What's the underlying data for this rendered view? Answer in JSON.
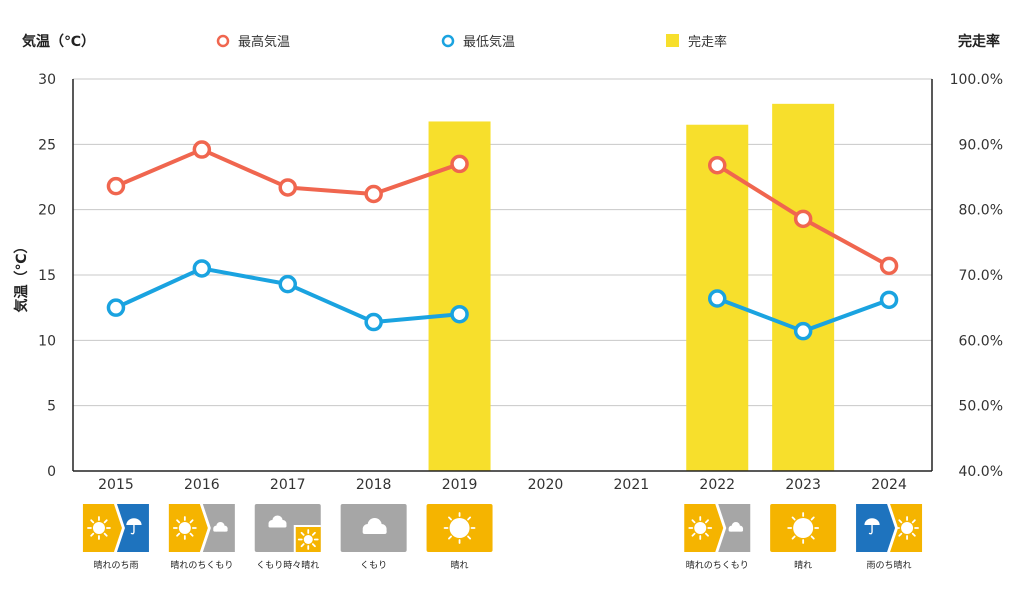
{
  "chart_data": {
    "type": "bar+line",
    "categories": [
      "2015",
      "2016",
      "2017",
      "2018",
      "2019",
      "2020",
      "2021",
      "2022",
      "2023",
      "2024"
    ],
    "left_axis": {
      "title": "気温（℃）",
      "ylabel": "気温（℃）",
      "ylim": [
        0,
        30
      ],
      "ticks": [
        "0",
        "5",
        "10",
        "15",
        "20",
        "25",
        "30"
      ]
    },
    "right_axis": {
      "title": "完走率",
      "ylim": [
        40,
        100
      ],
      "ticks": [
        "40.0%",
        "50.0%",
        "60.0%",
        "70.0%",
        "80.0%",
        "90.0%",
        "100.0%"
      ]
    },
    "series": [
      {
        "name": "最高気温",
        "kind": "line",
        "axis": "left",
        "color": "#f0664f",
        "values": [
          21.8,
          24.6,
          21.7,
          21.2,
          23.5,
          null,
          null,
          23.4,
          19.3,
          15.7
        ]
      },
      {
        "name": "最低気温",
        "kind": "line",
        "axis": "left",
        "color": "#1aa3e0",
        "values": [
          12.5,
          15.5,
          14.3,
          11.4,
          12.0,
          null,
          null,
          13.2,
          10.7,
          13.1
        ]
      },
      {
        "name": "完走率",
        "kind": "bar",
        "axis": "right",
        "color": "#f7df2c",
        "values": [
          null,
          null,
          null,
          null,
          93.5,
          null,
          null,
          93.0,
          96.2,
          null
        ]
      }
    ],
    "weather": [
      {
        "label": "晴れのち雨",
        "icons": [
          "sun",
          "rain"
        ]
      },
      {
        "label": "晴れのちくもり",
        "icons": [
          "sun",
          "cloud"
        ]
      },
      {
        "label": "くもり時々晴れ",
        "icons": [
          "cloud",
          "sun-small"
        ]
      },
      {
        "label": "くもり",
        "icons": [
          "cloud"
        ]
      },
      {
        "label": "晴れ",
        "icons": [
          "sun"
        ]
      },
      null,
      null,
      {
        "label": "晴れのちくもり",
        "icons": [
          "sun",
          "cloud"
        ]
      },
      {
        "label": "晴れ",
        "icons": [
          "sun"
        ]
      },
      {
        "label": "雨のち晴れ",
        "icons": [
          "rain",
          "sun"
        ]
      }
    ],
    "grid": true,
    "legend": "top"
  }
}
